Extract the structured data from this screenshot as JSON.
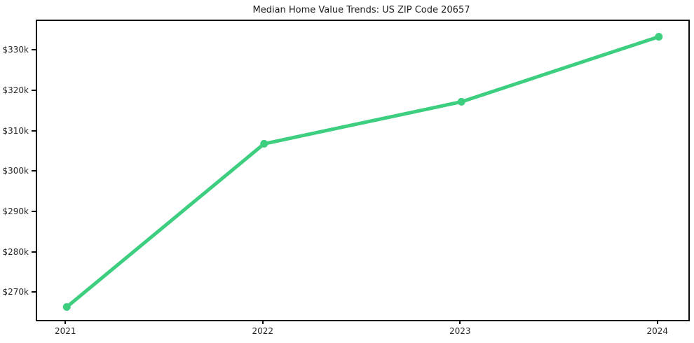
{
  "chart_data": {
    "type": "line",
    "title": "Median Home Value Trends: US ZIP Code 20657",
    "xlabel": "",
    "ylabel": "",
    "x": [
      2021,
      2022,
      2023,
      2024
    ],
    "x_tick_labels": [
      "2021",
      "2022",
      "2023",
      "2024"
    ],
    "series": [
      {
        "name": "Median Home Value",
        "values": [
          266700,
          307100,
          317500,
          333600
        ]
      }
    ],
    "y_ticks": [
      270000,
      280000,
      290000,
      300000,
      310000,
      320000,
      330000
    ],
    "y_tick_labels": [
      "$270k",
      "$280k",
      "$290k",
      "$300k",
      "$310k",
      "$320k",
      "$330k"
    ],
    "xlim": [
      2020.85,
      2024.15
    ],
    "ylim": [
      263500,
      337500
    ],
    "grid": false,
    "legend_position": "none",
    "line_color": "#3dce80",
    "marker": "circle",
    "spine_color": "#0a0a0a",
    "background_color": "#ffffff"
  }
}
